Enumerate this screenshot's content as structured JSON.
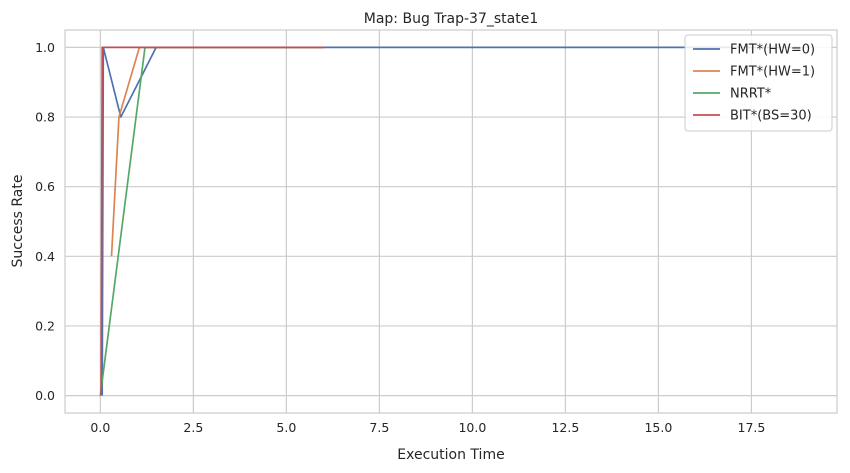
{
  "chart_data": {
    "type": "line",
    "title": "Map: Bug Trap-37_state1",
    "xlabel": "Execution Time",
    "ylabel": "Success Rate",
    "xlim": [
      -0.95,
      19.8
    ],
    "ylim": [
      -0.05,
      1.05
    ],
    "x_ticks": [
      0.0,
      2.5,
      5.0,
      7.5,
      10.0,
      12.5,
      15.0,
      17.5
    ],
    "x_tick_labels": [
      "0.0",
      "2.5",
      "5.0",
      "7.5",
      "10.0",
      "12.5",
      "15.0",
      "17.5"
    ],
    "y_ticks": [
      0.0,
      0.2,
      0.4,
      0.6,
      0.8,
      1.0
    ],
    "y_tick_labels": [
      "0.0",
      "0.2",
      "0.4",
      "0.6",
      "0.8",
      "1.0"
    ],
    "grid": true,
    "legend_position": "top-right",
    "series": [
      {
        "name": "FMT*(HW=0)",
        "color": "#4c72b0",
        "points": [
          [
            0.05,
            0.0
          ],
          [
            0.08,
            1.0
          ],
          [
            0.55,
            0.8
          ],
          [
            1.5,
            1.0
          ],
          [
            18.8,
            1.0
          ]
        ]
      },
      {
        "name": "FMT*(HW=1)",
        "color": "#dd8452",
        "points": [
          [
            0.3,
            0.4
          ],
          [
            0.5,
            0.8
          ],
          [
            1.05,
            1.0
          ],
          [
            6.0,
            1.0
          ]
        ]
      },
      {
        "name": "NRRT*",
        "color": "#55a868",
        "points": [
          [
            0.0,
            0.0
          ],
          [
            1.2,
            1.0
          ],
          [
            6.0,
            1.0
          ]
        ]
      },
      {
        "name": "BIT*(BS=30)",
        "color": "#c44e52",
        "points": [
          [
            0.02,
            0.0
          ],
          [
            0.05,
            1.0
          ],
          [
            6.0,
            1.0
          ]
        ]
      }
    ]
  }
}
